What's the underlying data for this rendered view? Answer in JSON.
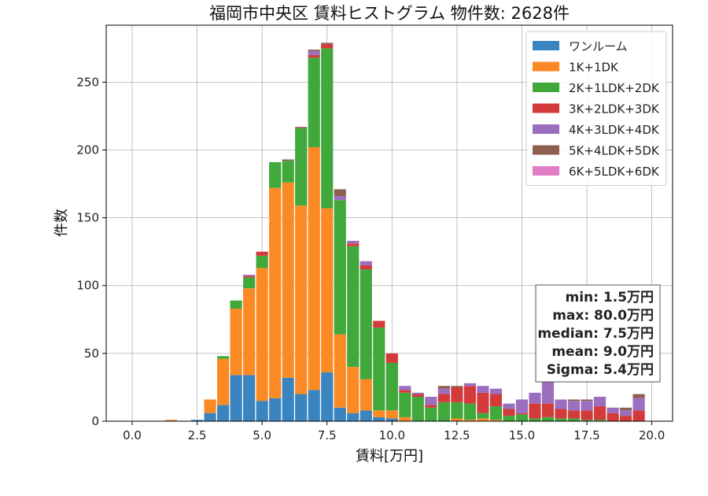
{
  "chart_data": {
    "type": "bar",
    "stacked": true,
    "title": "福岡市中央区 賃料ヒストグラム  物件数: 2628件",
    "xlabel": "賃料[万円]",
    "ylabel": "件数",
    "xlim": [
      -1.0,
      20.8
    ],
    "ylim": [
      0,
      292
    ],
    "x_ticks": [
      0.0,
      2.5,
      5.0,
      7.5,
      10.0,
      12.5,
      15.0,
      17.5,
      20.0
    ],
    "y_ticks": [
      0,
      50,
      100,
      150,
      200,
      250
    ],
    "grid": true,
    "bin_width": 0.5,
    "bar_width_fraction": 0.92,
    "bins": [
      1.5,
      2.5,
      3.0,
      3.5,
      4.0,
      4.5,
      5.0,
      5.5,
      6.0,
      6.5,
      7.0,
      7.5,
      8.0,
      8.5,
      9.0,
      9.5,
      10.0,
      10.5,
      11.0,
      11.5,
      12.0,
      12.5,
      13.0,
      13.5,
      14.0,
      14.5,
      15.0,
      15.5,
      16.0,
      16.5,
      17.0,
      17.5,
      18.0,
      18.5,
      19.0,
      19.5
    ],
    "legend_position": "top-right",
    "series": [
      {
        "name": "ワンルーム",
        "color": "#3a84bf",
        "values": [
          0,
          1,
          6,
          12,
          34,
          34,
          15,
          17,
          32,
          20,
          23,
          36,
          10,
          6,
          8,
          3,
          2,
          0,
          0,
          0,
          0,
          0,
          0,
          0,
          0,
          0,
          0,
          0,
          0,
          0,
          0,
          0,
          0,
          0,
          0,
          0
        ]
      },
      {
        "name": "1K+1DK",
        "color": "#fb8a25",
        "values": [
          1,
          0,
          10,
          34,
          49,
          64,
          98,
          155,
          144,
          139,
          179,
          121,
          54,
          34,
          23,
          5,
          6,
          3,
          0,
          0,
          0,
          2,
          1,
          2,
          1,
          0,
          0,
          0,
          0,
          0,
          0,
          0,
          0,
          0,
          0,
          0
        ]
      },
      {
        "name": "2K+1LDK+2DK",
        "color": "#41a83b",
        "values": [
          0,
          0,
          0,
          2,
          6,
          8,
          9,
          19,
          16,
          57,
          66,
          118,
          99,
          89,
          81,
          61,
          35,
          18,
          18,
          10,
          14,
          12,
          12,
          4,
          10,
          4,
          5,
          2,
          3,
          2,
          2,
          1,
          1,
          0,
          0,
          0
        ]
      },
      {
        "name": "3K+2LDK+3DK",
        "color": "#d33b3b",
        "values": [
          0,
          0,
          0,
          0,
          0,
          1,
          3,
          0,
          0,
          0,
          2,
          3,
          0,
          2,
          3,
          5,
          7,
          2,
          2,
          2,
          6,
          11,
          13,
          15,
          9,
          5,
          1,
          11,
          10,
          7,
          6,
          7,
          10,
          6,
          4,
          8
        ]
      },
      {
        "name": "4K+3LDK+4DK",
        "color": "#9c6ebf",
        "values": [
          0,
          0,
          0,
          0,
          0,
          1,
          0,
          0,
          0,
          0,
          3,
          0,
          3,
          2,
          3,
          0,
          0,
          3,
          1,
          6,
          4,
          0,
          2,
          5,
          4,
          4,
          10,
          8,
          16,
          7,
          7,
          7,
          7,
          4,
          4,
          9
        ]
      },
      {
        "name": "5K+4LDK+5DK",
        "color": "#8e5e51",
        "values": [
          0,
          0,
          0,
          0,
          0,
          0,
          0,
          0,
          1,
          1,
          1,
          1,
          5,
          0,
          0,
          0,
          0,
          0,
          0,
          0,
          2,
          1,
          0,
          0,
          0,
          0,
          0,
          0,
          0,
          0,
          1,
          1,
          0,
          0,
          2,
          3
        ]
      },
      {
        "name": "6K+5LDK+6DK",
        "color": "#e07ec8",
        "values": [
          0,
          0,
          0,
          0,
          0,
          0,
          0,
          0,
          0,
          0,
          0,
          0,
          0,
          0,
          0,
          0,
          0,
          0,
          0,
          0,
          0,
          0,
          0,
          0,
          0,
          0,
          0,
          0,
          0,
          0,
          0,
          0,
          0,
          0,
          0,
          0
        ]
      }
    ],
    "annotation": {
      "position": "middle-right",
      "lines": [
        "min: 1.5万円",
        "max: 80.0万円",
        "median: 7.5万円",
        "mean: 9.0万円",
        "Sigma: 5.4万円"
      ]
    }
  }
}
